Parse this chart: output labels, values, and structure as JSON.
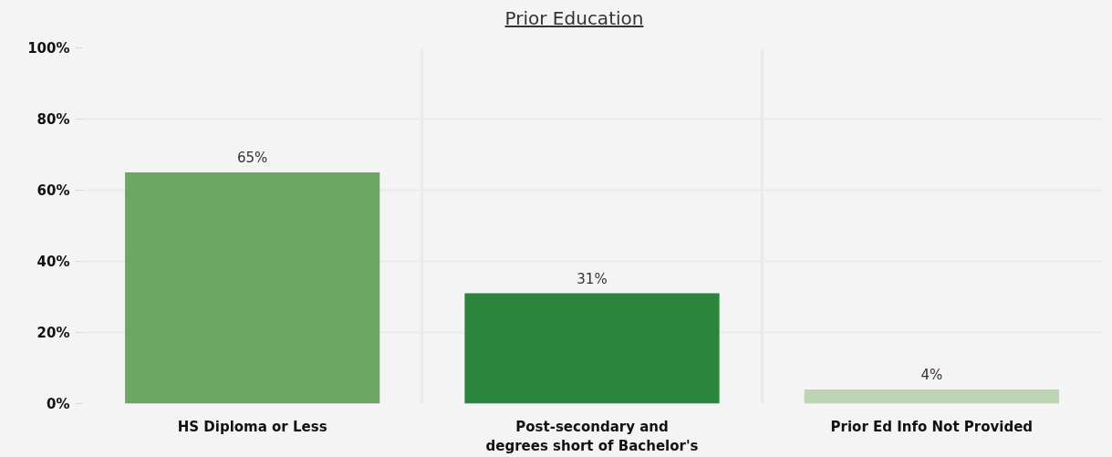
{
  "chart_data": {
    "type": "bar",
    "title": "Prior Education",
    "categories": [
      "HS Diploma or Less",
      "Post-secondary and degrees short of Bachelor's",
      "Prior Ed Info Not Provided"
    ],
    "values": [
      65,
      31,
      4
    ],
    "colors": [
      "#6ca864",
      "#2b853d",
      "#bdd4b5"
    ],
    "value_labels": [
      "65%",
      "31%",
      "4%"
    ],
    "ylim": [
      0,
      100
    ],
    "yticks": [
      {
        "value": 0,
        "label": "0%"
      },
      {
        "value": 20,
        "label": "20%"
      },
      {
        "value": 40,
        "label": "40%"
      },
      {
        "value": 60,
        "label": "60%"
      },
      {
        "value": 80,
        "label": "80%"
      },
      {
        "value": 100,
        "label": "100%"
      }
    ],
    "grid": true
  }
}
